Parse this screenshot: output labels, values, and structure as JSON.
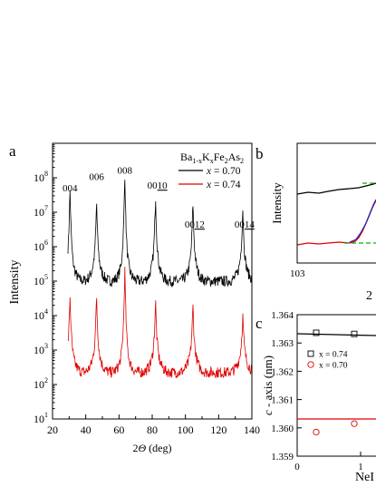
{
  "chart_data": [
    {
      "type": "line",
      "panel_label": "a",
      "xlabel_parts": {
        "prefix": "2",
        "italic": "Θ",
        "suffix": " (deg)"
      },
      "ylabel": "Intensity",
      "xlim": [
        20,
        140
      ],
      "ylim_log10": [
        1,
        9
      ],
      "y_scale": "log",
      "x_ticks": [
        20,
        40,
        60,
        80,
        100,
        120,
        140
      ],
      "y_ticks_exp": [
        1,
        2,
        3,
        4,
        5,
        6,
        7,
        8
      ],
      "legend": {
        "title_parts": [
          "Ba",
          "1-x",
          "K",
          "x",
          "Fe",
          "2",
          "As",
          "2"
        ],
        "entries": [
          {
            "var": "x",
            "value": " = 0.70",
            "color": "#000000"
          },
          {
            "var": "x",
            "value": " = 0.74",
            "color": "#e00000"
          }
        ]
      },
      "peak_labels": [
        {
          "text": "004",
          "underline": ""
        },
        {
          "text": "006",
          "underline": ""
        },
        {
          "text": "008",
          "underline": ""
        },
        {
          "text": "00",
          "underline": "10"
        },
        {
          "text": "00",
          "underline": "12"
        },
        {
          "text": "00",
          "underline": "14"
        }
      ],
      "series": [
        {
          "color": "#000000",
          "baseline_log10": 5.0,
          "peaks": [
            [
              30.5,
              7.4
            ],
            [
              46.5,
              7.0
            ],
            [
              63.5,
              7.9
            ],
            [
              82.0,
              7.2
            ],
            [
              104.5,
              7.0
            ],
            [
              134.5,
              6.85
            ]
          ]
        },
        {
          "color": "#e00000",
          "baseline_log10": 2.35,
          "peaks": [
            [
              30.5,
              4.3
            ],
            [
              46.5,
              4.3
            ],
            [
              63.5,
              5.1
            ],
            [
              82.0,
              4.1
            ],
            [
              104.5,
              4.0
            ],
            [
              134.5,
              3.7
            ]
          ]
        }
      ]
    },
    {
      "type": "line",
      "panel_label": "b",
      "ylabel": "Intensity",
      "x_tick_shown": "103",
      "xlabel_fragment": "2"
    },
    {
      "type": "scatter",
      "panel_label": "c",
      "ylabel_parts": {
        "italic": "c",
        "rest": " - axis (nm)"
      },
      "xlabel_fragment": "NeI",
      "ylim": [
        1.359,
        1.364
      ],
      "y_ticks": [
        "1.359",
        "1.360",
        "1.361",
        "1.362",
        "1.363",
        "1.364"
      ],
      "x_ticks": [
        "0",
        "1"
      ],
      "legend": [
        {
          "label": "x = 0.74",
          "marker": "square",
          "color": "#000000"
        },
        {
          "label": "x = 0.70",
          "marker": "circle",
          "color": "#e00000"
        }
      ],
      "series": [
        {
          "name": "x = 0.74",
          "color": "#000000",
          "points": [
            [
              0.3,
              1.36336
            ],
            [
              0.9,
              1.36332
            ]
          ]
        },
        {
          "name": "x = 0.70",
          "color": "#e00000",
          "points": [
            [
              0.3,
              1.35985
            ],
            [
              0.9,
              1.36015
            ]
          ]
        }
      ]
    }
  ]
}
